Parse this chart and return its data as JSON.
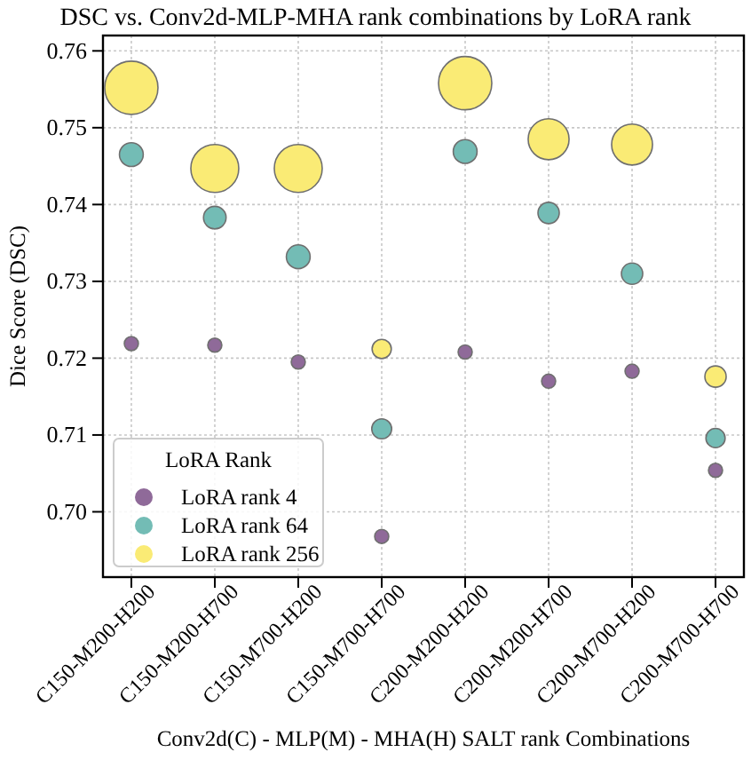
{
  "chart_data": {
    "type": "bubble",
    "title": "DSC vs. Conv2d-MLP-MHA rank combinations by LoRA rank",
    "xlabel": "Conv2d(C) - MLP(M) - MHA(H) SALT rank Combinations",
    "ylabel": "Dice Score (DSC)",
    "legend_title": "LoRA Rank",
    "categories": [
      "C150-M200-H200",
      "C150-M200-H700",
      "C150-M700-H200",
      "C150-M700-H700",
      "C200-M200-H200",
      "C200-M200-H700",
      "C200-M700-H200",
      "C200-M700-H700"
    ],
    "ylim": [
      0.6915,
      0.762
    ],
    "yticks": [
      {
        "value": 0.7,
        "label": "0.70"
      },
      0.71,
      0.72,
      0.73,
      0.74,
      0.75,
      0.76
    ],
    "grid": true,
    "legend": "bottom left",
    "marker": "circle",
    "series": [
      {
        "name": "LoRA rank 4",
        "color": "#8f6a99",
        "values": [
          0.7219,
          0.7217,
          0.7195,
          0.6968,
          0.7208,
          0.717,
          0.7183,
          0.7054
        ],
        "sizes": [
          0.07,
          0.07,
          0.07,
          0.07,
          0.07,
          0.07,
          0.07,
          0.07
        ]
      },
      {
        "name": "LoRA rank 64",
        "color": "#73bcb5",
        "values": [
          0.7465,
          0.7383,
          0.7332,
          0.7108,
          0.7469,
          0.7389,
          0.731,
          0.7096
        ],
        "sizes": [
          0.2,
          0.18,
          0.2,
          0.14,
          0.2,
          0.16,
          0.16,
          0.13
        ]
      },
      {
        "name": "LoRA rank 256",
        "color": "#faeb75",
        "values": [
          0.7552,
          0.7447,
          0.7447,
          0.7212,
          0.7558,
          0.7485,
          0.7478,
          0.7176
        ],
        "sizes": [
          1,
          0.81,
          0.81,
          0.13,
          1,
          0.59,
          0.59,
          0.16
        ]
      }
    ]
  }
}
